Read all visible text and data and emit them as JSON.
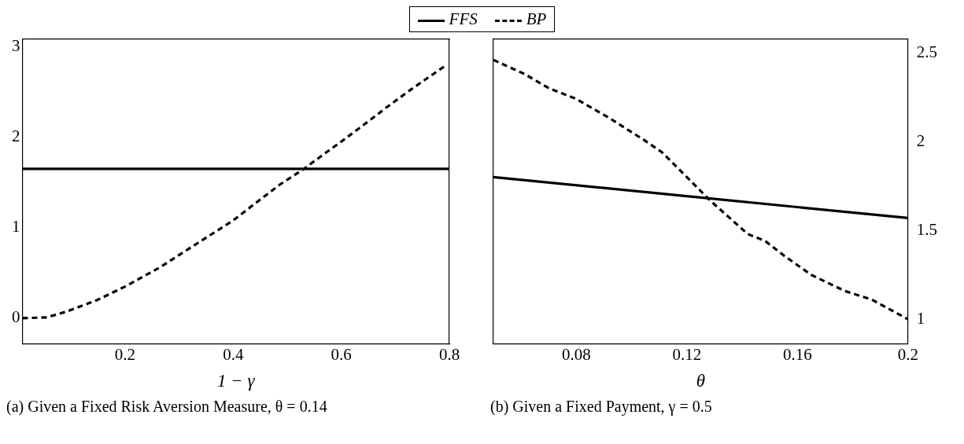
{
  "chart_data": [
    {
      "type": "line",
      "xlabel": "1 − γ",
      "xlim": [
        0.01,
        0.8
      ],
      "xticks": [
        0.2,
        0.4,
        0.6,
        0.8
      ],
      "ylim": [
        -0.28,
        3.08
      ],
      "yticks": [
        0,
        1,
        2,
        3
      ],
      "grid": false,
      "legend": "top",
      "marker": "none",
      "annotations": [
        "(a) Given a Fixed Risk Aversion Measure, θ = 0.14"
      ],
      "series": [
        {
          "name": "FFS",
          "color": "#000000",
          "line_style": "solid",
          "x": [
            0.01,
            0.8
          ],
          "values": [
            1.65,
            1.65
          ]
        },
        {
          "name": "BP",
          "color": "#000000",
          "line_style": "dashed",
          "x": [
            0.01,
            0.055,
            0.09,
            0.148,
            0.2,
            0.264,
            0.345,
            0.4,
            0.45,
            0.485,
            0.531,
            0.572,
            0.6,
            0.647,
            0.682,
            0.73,
            0.793
          ],
          "values": [
            0,
            0.01,
            0.07,
            0.2,
            0.35,
            0.56,
            0.87,
            1.08,
            1.31,
            1.47,
            1.65,
            1.83,
            1.95,
            2.16,
            2.32,
            2.53,
            2.79
          ]
        }
      ]
    },
    {
      "type": "line",
      "xlabel": "θ",
      "xlim": [
        0.05,
        0.2
      ],
      "xticks": [
        0.08,
        0.12,
        0.16,
        0.2
      ],
      "y2lim": [
        0.863,
        2.576
      ],
      "y2ticks": [
        1,
        1.5,
        2,
        2.5
      ],
      "grid": false,
      "legend": "top",
      "marker": "none",
      "annotations": [
        "(b) Given a Fixed Payment, γ = 0.5"
      ],
      "series": [
        {
          "name": "FFS",
          "color": "#000000",
          "line_style": "solid",
          "axis": "y2",
          "x": [
            0.05,
            0.2
          ],
          "values": [
            1.8,
            1.57
          ]
        },
        {
          "name": "BP",
          "color": "#000000",
          "line_style": "dashed",
          "axis": "y2",
          "x": [
            0.05,
            0.0613,
            0.0702,
            0.08,
            0.0912,
            0.1044,
            0.111,
            0.12,
            0.1283,
            0.142,
            0.1484,
            0.155,
            0.165,
            0.177,
            0.187,
            0.2
          ],
          "values": [
            2.46,
            2.38,
            2.3,
            2.24,
            2.14,
            2.01,
            1.94,
            1.8,
            1.67,
            1.48,
            1.44,
            1.36,
            1.25,
            1.16,
            1.11,
            1.0
          ]
        }
      ]
    }
  ]
}
